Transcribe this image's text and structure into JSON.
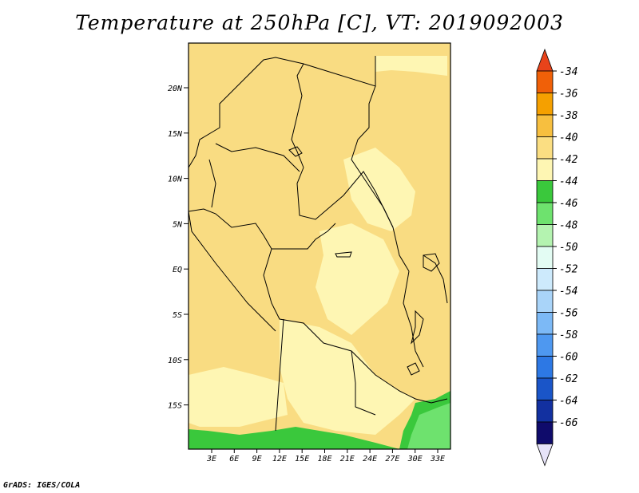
{
  "title": "Temperature at 250hPa [C], VT: 2019092003",
  "credit": "GrADS: IGES/COLA",
  "map": {
    "lat_labels": [
      "20N",
      "15N",
      "10N",
      "5N",
      "EQ",
      "5S",
      "10S",
      "15S"
    ],
    "lon_labels": [
      "3E",
      "6E",
      "9E",
      "12E",
      "15E",
      "18E",
      "21E",
      "24E",
      "27E",
      "30E",
      "33E"
    ]
  },
  "colorbar": {
    "labels": [
      "-34",
      "-36",
      "-38",
      "-40",
      "-42",
      "-44",
      "-46",
      "-48",
      "-50",
      "-52",
      "-54",
      "-56",
      "-58",
      "-60",
      "-62",
      "-64",
      "-66"
    ],
    "colors": [
      "#e8431a",
      "#f06008",
      "#f5a000",
      "#f7bf3f",
      "#fbde82",
      "#fef6b3",
      "#3ac83c",
      "#6ee26e",
      "#b4f3b0",
      "#e3fcf3",
      "#cdeafc",
      "#a9d4f9",
      "#7cb9f6",
      "#4e98f0",
      "#2d78e4",
      "#1a55c8",
      "#1230a0",
      "#0f0b6b",
      "#e6e3f8"
    ]
  },
  "fields": {
    "warm": "#f9dc82",
    "cool": "#fef6b3",
    "green": "#3ac83c",
    "light_green": "#6ee26e"
  }
}
